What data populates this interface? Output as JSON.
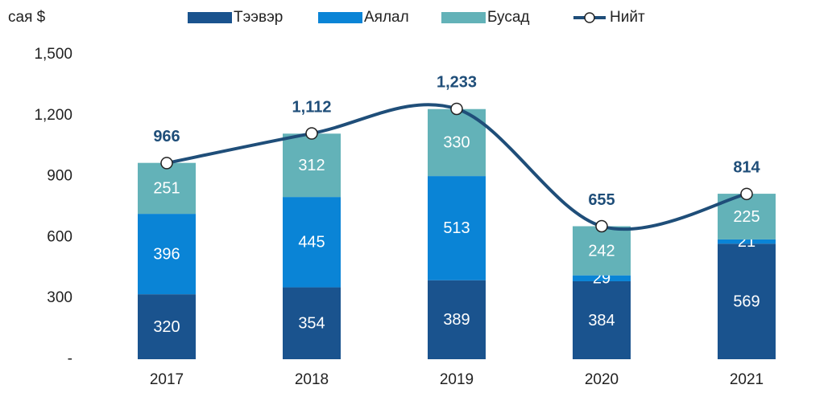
{
  "chart_data": {
    "type": "bar",
    "stacked": true,
    "y_unit_label": "сая $",
    "categories": [
      "2017",
      "2018",
      "2019",
      "2020",
      "2021"
    ],
    "series": [
      {
        "name": "Тээвэр",
        "color": "#1a538e",
        "values": [
          320,
          354,
          389,
          384,
          569
        ]
      },
      {
        "name": "Аялал",
        "color": "#0a84d6",
        "values": [
          396,
          445,
          513,
          29,
          21
        ]
      },
      {
        "name": "Бусад",
        "color": "#63b2b8",
        "values": [
          251,
          312,
          330,
          242,
          225
        ]
      },
      {
        "name": "Нийт",
        "type": "line",
        "color": "#1f4e79",
        "values": [
          966,
          1112,
          1233,
          655,
          814
        ],
        "value_labels": [
          "966",
          "1,112",
          "1,233",
          "655",
          "814"
        ]
      }
    ],
    "ylim": [
      0,
      1500
    ],
    "yticks": [
      {
        "value": 0,
        "label": "-"
      },
      300,
      600,
      900,
      {
        "value": 1200,
        "label": "1,200"
      },
      {
        "value": 1500,
        "label": "1,500"
      }
    ],
    "grid": false,
    "legend": "top"
  }
}
